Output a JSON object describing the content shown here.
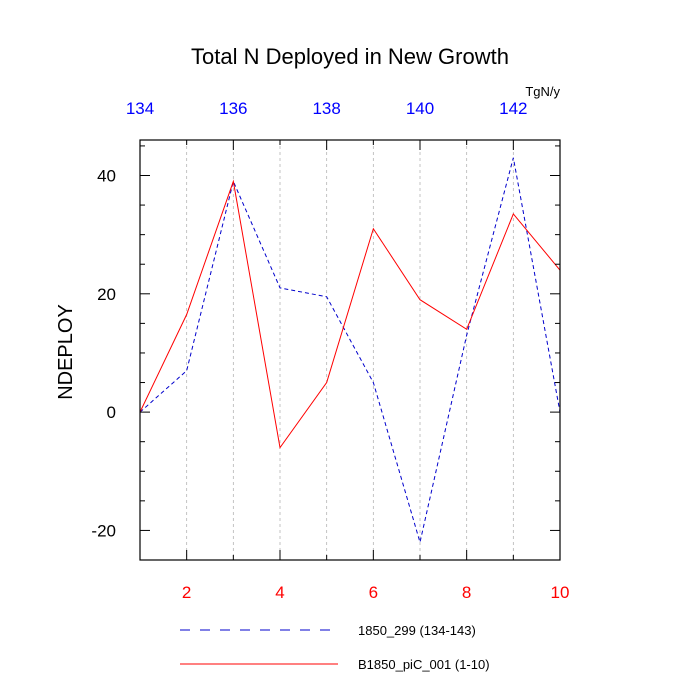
{
  "chart_data": {
    "type": "line",
    "title": "Total N Deployed in New Growth",
    "units": "TgN/y",
    "ylabel": "NDEPLOY",
    "xlim": [
      1,
      10
    ],
    "ylim": [
      -25,
      46
    ],
    "yticks": [
      -20,
      0,
      20,
      40
    ],
    "yticks_labels": [
      "-20",
      "0",
      "20",
      "40"
    ],
    "bottom_axis": {
      "color": "#ff0000",
      "ticks": [
        2,
        4,
        6,
        8,
        10
      ],
      "labels": [
        "2",
        "4",
        "6",
        "8",
        "10"
      ]
    },
    "top_axis": {
      "color": "#0000ff",
      "range": [
        134,
        143
      ],
      "ticks": [
        134,
        136,
        138,
        140,
        142
      ],
      "labels": [
        "134",
        "136",
        "138",
        "140",
        "142"
      ]
    },
    "vgrid": [
      2,
      3,
      4,
      5,
      6,
      7,
      8,
      9
    ],
    "series": [
      {
        "name": "1850_299 (134-143)",
        "color": "#0000cc",
        "dash": "dashed",
        "x": [
          1,
          2,
          3,
          4,
          5,
          6,
          7,
          8,
          9,
          10
        ],
        "values": [
          0,
          7,
          39,
          21,
          19.5,
          5,
          -22,
          13,
          43,
          0
        ]
      },
      {
        "name": "B1850_piC_001 (1-10)",
        "color": "#ff0000",
        "dash": "solid",
        "x": [
          1,
          2,
          3,
          4,
          5,
          6,
          7,
          8,
          9,
          10
        ],
        "values": [
          0,
          16.5,
          39,
          -6,
          5,
          31,
          19,
          14,
          33.5,
          24
        ]
      }
    ],
    "legend_position": "bottom"
  }
}
